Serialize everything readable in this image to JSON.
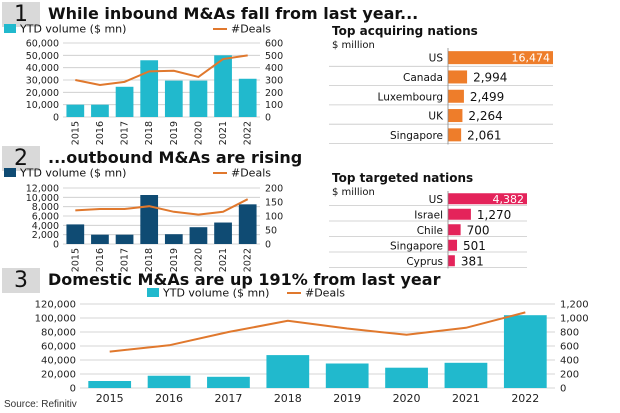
{
  "source": "Source: Refinitiv",
  "panels": [
    {
      "number": "1",
      "title": "While inbound M&As fall from last year..."
    },
    {
      "number": "2",
      "title": "...outbound M&As are rising"
    },
    {
      "number": "3",
      "title": "Domestic M&As are up 191% from last year"
    }
  ],
  "colors": {
    "cyan": "#21b9cd",
    "navy": "#0f4b73",
    "orange": "#e0782d",
    "bar_orange": "#ee7d2a",
    "pink": "#e4235a",
    "grid": "#c8c8c8"
  },
  "chart_data": [
    {
      "type": "bar",
      "legend": {
        "bar": "YTD volume ($ mn)",
        "line": "#Deals"
      },
      "categories": [
        "2015",
        "2016",
        "2017",
        "2018",
        "2019",
        "2020",
        "2021",
        "2022"
      ],
      "series": [
        {
          "name": "YTD volume ($ mn)",
          "values": [
            10000,
            10000,
            24500,
            46000,
            29500,
            29500,
            50000,
            31000
          ]
        },
        {
          "name": "#Deals",
          "values": [
            300,
            260,
            285,
            370,
            375,
            325,
            470,
            500
          ]
        }
      ],
      "ylim": [
        0,
        60000
      ],
      "y2lim": [
        0,
        600
      ],
      "yticks": [
        "0",
        "10,000",
        "20,000",
        "30,000",
        "40,000",
        "50,000",
        "60,000"
      ],
      "y2ticks": [
        "0",
        "100",
        "200",
        "300",
        "400",
        "500",
        "600"
      ]
    },
    {
      "type": "bar",
      "title": "Top acquiring nations",
      "subtitle": "$ million",
      "categories": [
        "US",
        "Canada",
        "Luxembourg",
        "UK",
        "Singapore"
      ],
      "values": [
        16474,
        2994,
        2499,
        2264,
        2061
      ],
      "labels": [
        "16,474",
        "2,994",
        "2,499",
        "2,264",
        "2,061"
      ]
    },
    {
      "type": "bar",
      "legend": {
        "bar": "YTD volume ($ mn)",
        "line": "#Deals"
      },
      "categories": [
        "2015",
        "2016",
        "2017",
        "2018",
        "2019",
        "2020",
        "2021",
        "2022"
      ],
      "series": [
        {
          "name": "YTD volume ($ mn)",
          "values": [
            4200,
            2000,
            2000,
            10500,
            2100,
            3600,
            4600,
            8500
          ]
        },
        {
          "name": "#Deals",
          "values": [
            120,
            125,
            125,
            135,
            115,
            105,
            115,
            160
          ]
        }
      ],
      "ylim": [
        0,
        12000
      ],
      "y2lim": [
        0,
        200
      ],
      "yticks": [
        "0",
        "2,000",
        "4,000",
        "6,000",
        "8,000",
        "10,000",
        "12,000"
      ],
      "y2ticks": [
        "0",
        "50",
        "100",
        "150",
        "200"
      ]
    },
    {
      "type": "bar",
      "title": "Top targeted nations",
      "subtitle": "$ million",
      "categories": [
        "US",
        "Israel",
        "Chile",
        "Singapore",
        "Cyprus"
      ],
      "values": [
        4382,
        1270,
        700,
        501,
        381
      ],
      "labels": [
        "4,382",
        "1,270",
        "700",
        "501",
        "381"
      ]
    },
    {
      "type": "bar",
      "legend": {
        "bar": "YTD volume ($ mn)",
        "line": "#Deals"
      },
      "categories": [
        "2015",
        "2016",
        "2017",
        "2018",
        "2019",
        "2020",
        "2021",
        "2022"
      ],
      "series": [
        {
          "name": "YTD volume ($ mn)",
          "values": [
            10000,
            17500,
            16000,
            47000,
            35000,
            29000,
            36000,
            104000
          ]
        },
        {
          "name": "#Deals",
          "values": [
            520,
            610,
            800,
            960,
            850,
            760,
            860,
            1080
          ]
        }
      ],
      "ylim": [
        0,
        120000
      ],
      "y2lim": [
        0,
        1200
      ],
      "yticks": [
        "0",
        "20,000",
        "40,000",
        "60,000",
        "80,000",
        "100,000",
        "120,000"
      ],
      "y2ticks": [
        "0",
        "200",
        "400",
        "600",
        "800",
        "1,000",
        "1,200"
      ]
    }
  ]
}
